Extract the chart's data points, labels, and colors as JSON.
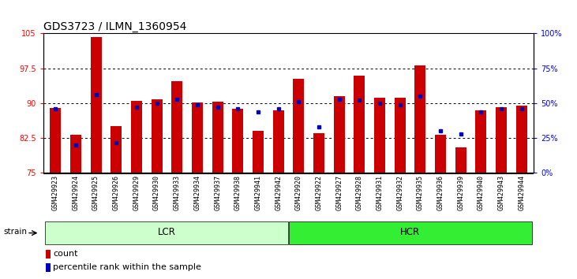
{
  "title": "GDS3723 / ILMN_1360954",
  "samples": [
    "GSM429923",
    "GSM429924",
    "GSM429925",
    "GSM429926",
    "GSM429929",
    "GSM429930",
    "GSM429933",
    "GSM429934",
    "GSM429937",
    "GSM429938",
    "GSM429941",
    "GSM429942",
    "GSM429920",
    "GSM429922",
    "GSM429927",
    "GSM429928",
    "GSM429931",
    "GSM429932",
    "GSM429935",
    "GSM429936",
    "GSM429939",
    "GSM429940",
    "GSM429943",
    "GSM429944"
  ],
  "bar_heights": [
    89.0,
    83.2,
    104.2,
    85.0,
    90.5,
    90.8,
    94.8,
    90.2,
    90.3,
    88.8,
    84.0,
    88.5,
    95.2,
    83.5,
    91.5,
    96.0,
    91.2,
    91.2,
    98.2,
    83.2,
    80.5,
    88.5,
    89.2,
    89.5
  ],
  "percentile_ranks": [
    46,
    20,
    56,
    22,
    47,
    50,
    53,
    49,
    47,
    46,
    44,
    46,
    51,
    33,
    53,
    52,
    50,
    49,
    55,
    30,
    28,
    44,
    46,
    46
  ],
  "lcr_count": 12,
  "hcr_count": 12,
  "ylim_left": [
    75,
    105
  ],
  "ylim_right": [
    0,
    100
  ],
  "yticks_left": [
    75,
    82.5,
    90,
    97.5,
    105
  ],
  "yticks_right": [
    0,
    25,
    50,
    75,
    100
  ],
  "bar_color": "#cc0000",
  "dot_color": "#0000bb",
  "lcr_color": "#ccffcc",
  "hcr_color": "#33ee33",
  "bar_bottom": 75,
  "background_color": "#ffffff",
  "tick_label_fontsize": 6.0,
  "title_fontsize": 10,
  "legend_fontsize": 8,
  "strain_label": "strain",
  "lcr_label": "LCR",
  "hcr_label": "HCR",
  "legend_count": "count",
  "legend_pct": "percentile rank within the sample",
  "bar_width": 0.55
}
